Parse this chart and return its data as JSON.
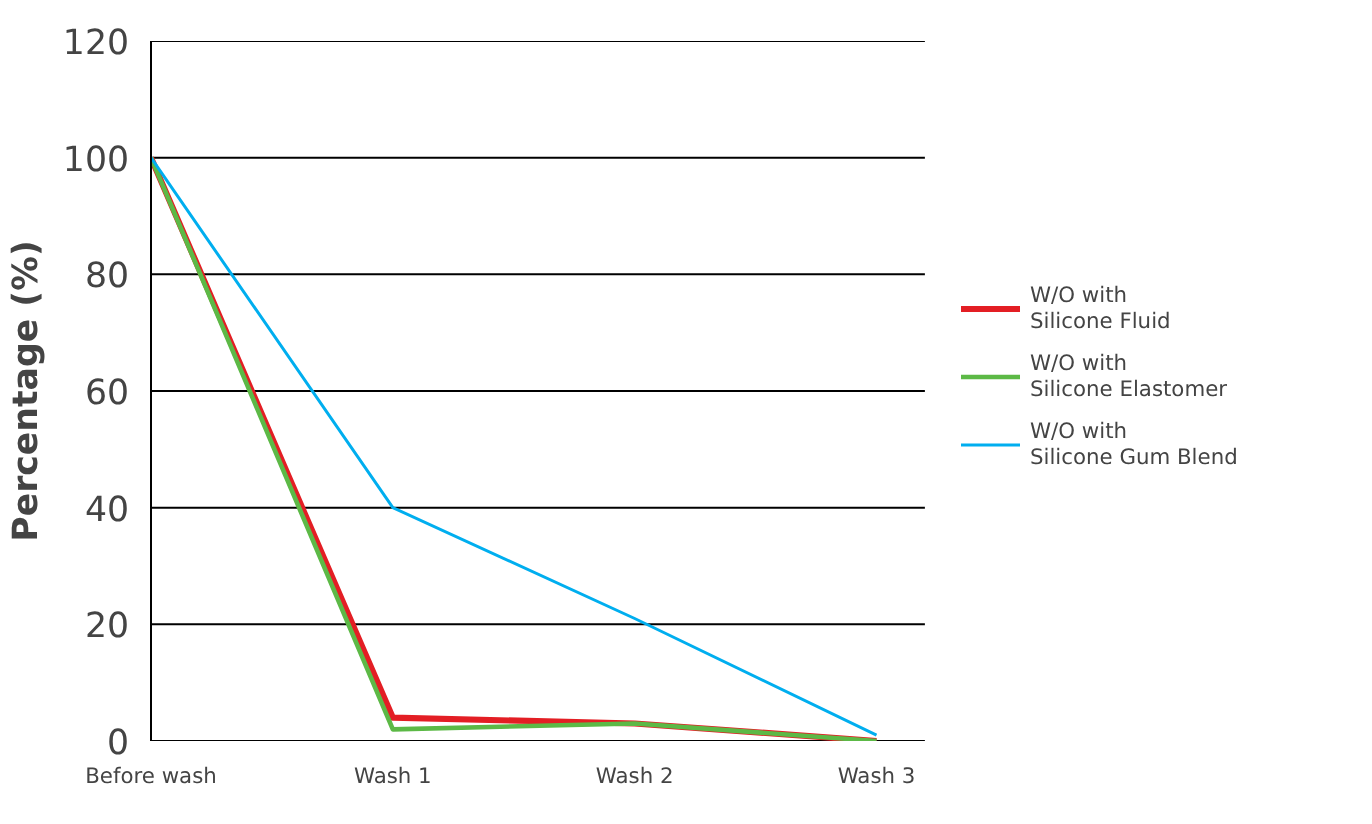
{
  "chart_data": {
    "type": "line",
    "ylabel": "Percentage (%)",
    "categories": [
      "Before wash",
      "Wash 1",
      "Wash 2",
      "Wash 3"
    ],
    "series": [
      {
        "name": "W/O with\nSilicone Fluid",
        "color": "#e31e24",
        "values": [
          100,
          4,
          3,
          0
        ]
      },
      {
        "name": "W/O with\nSilicone Elastomer",
        "color": "#5cb946",
        "values": [
          100,
          2,
          3,
          0
        ]
      },
      {
        "name": "W/O with\nSilicone Gum Blend",
        "color": "#00aeef",
        "values": [
          100,
          40,
          21,
          1
        ]
      }
    ],
    "ylim": [
      0,
      120
    ],
    "yticks": [
      0,
      20,
      40,
      60,
      80,
      100,
      120
    ],
    "grid": "y",
    "legend": "right",
    "marker": "none",
    "line_style": "solid"
  }
}
